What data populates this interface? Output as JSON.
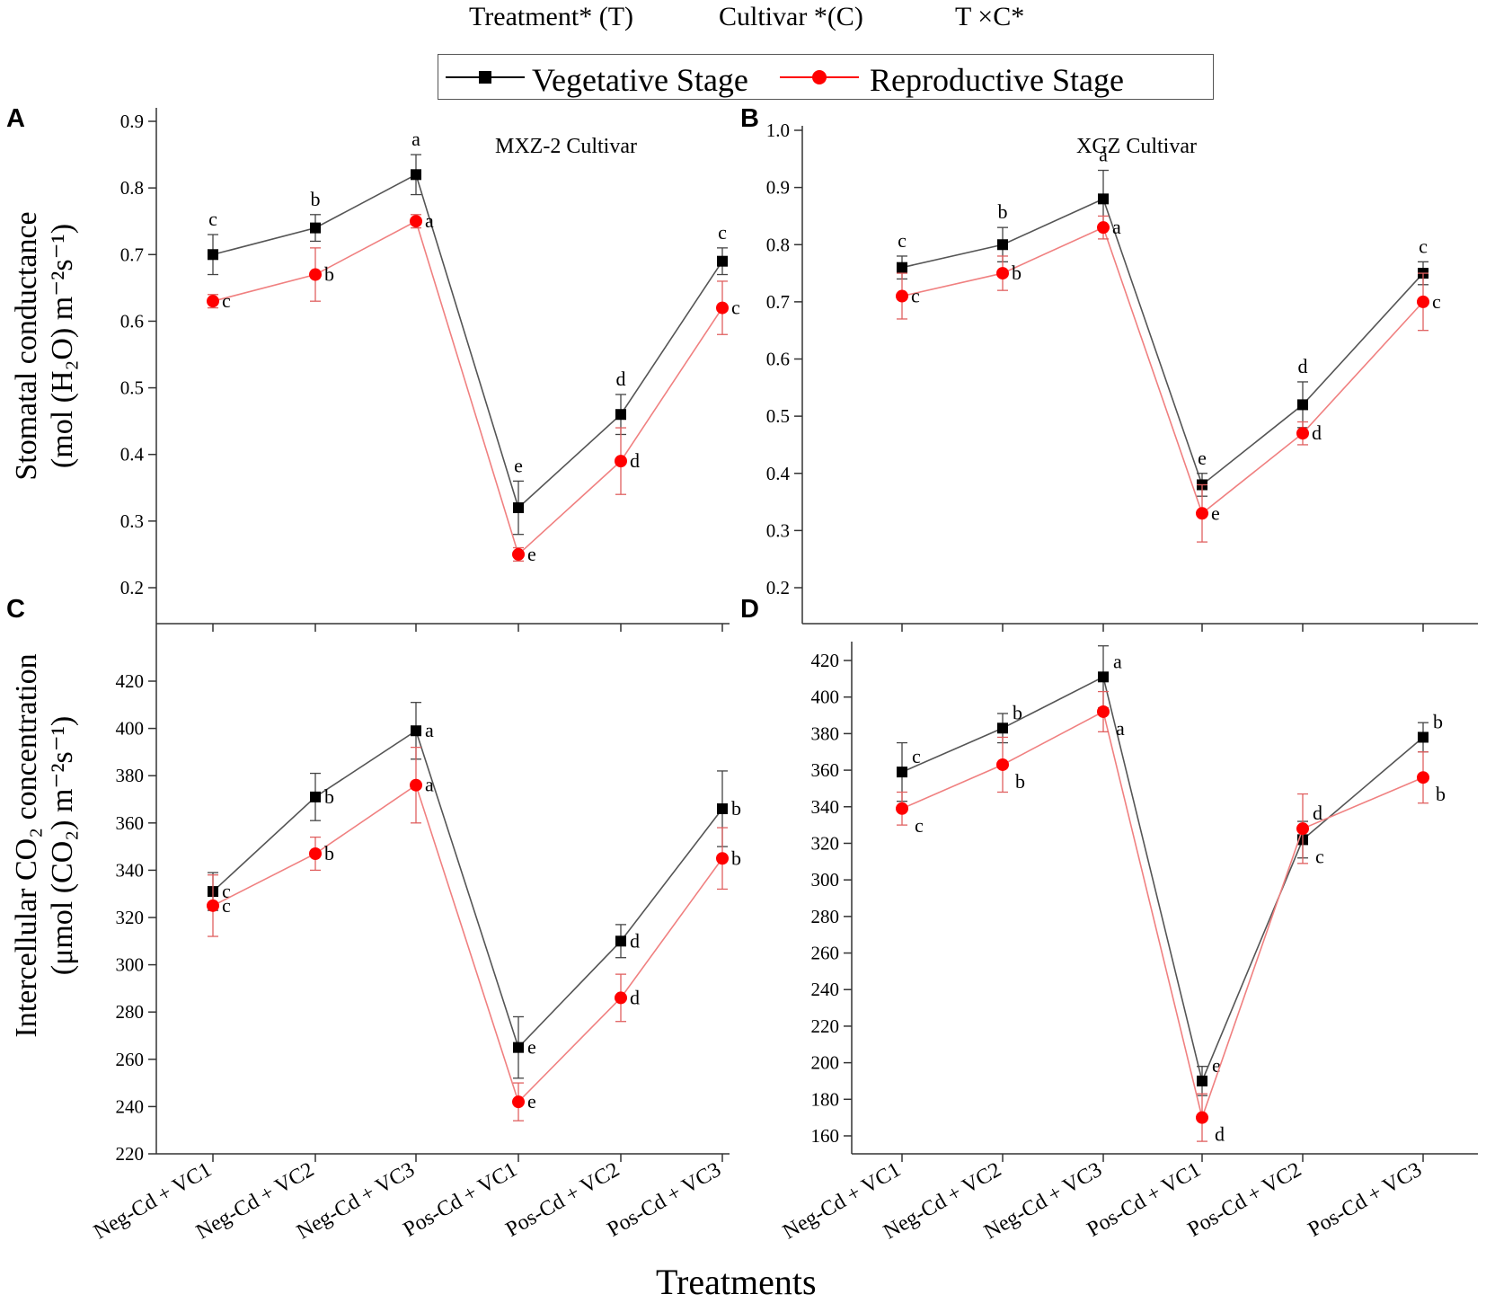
{
  "stats_header": {
    "treatment": "Treatment* (T)",
    "cultivar": "Cultivar *(C)",
    "interaction": "T ×C*"
  },
  "legend": {
    "vegetative": "Vegetative Stage",
    "reproductive": "Reproductive Stage"
  },
  "colors": {
    "vegetative": "#000000",
    "vegetative_line": "#555555",
    "reproductive": "#ff0000",
    "reproductive_line": "#f08080",
    "axis": "#333333"
  },
  "y_labels": {
    "top_line1": "Stomatal conductance",
    "top_line2": "(mol (H₂O) m⁻²s⁻¹)",
    "bottom_line1": "Intercellular CO₂ concentration",
    "bottom_line2": "(μmol (CO₂) m⁻²s⁻¹)"
  },
  "x_title": "Treatments",
  "chart_data": [
    {
      "panel": "A",
      "type": "line",
      "title": "MXZ-2 Cultivar",
      "categories": [
        "Neg-Cd + VC1",
        "Neg-Cd + VC2",
        "Neg-Cd + VC3",
        "Pos-Cd + VC1",
        "Pos-Cd + VC2",
        "Pos-Cd + VC3"
      ],
      "ylim": [
        0.15,
        0.9
      ],
      "yticks": [
        0.2,
        0.3,
        0.4,
        0.5,
        0.6,
        0.7,
        0.8,
        0.9
      ],
      "decimals": 1,
      "show_xlabels": false,
      "series": [
        {
          "name": "Vegetative Stage",
          "values": [
            0.7,
            0.74,
            0.82,
            0.32,
            0.46,
            0.69
          ],
          "errors": [
            0.03,
            0.02,
            0.03,
            0.04,
            0.03,
            0.02
          ],
          "letters": [
            "c",
            "b",
            "a",
            "e",
            "d",
            "c"
          ],
          "letter_pos": [
            "above",
            "above",
            "above",
            "above",
            "above",
            "above"
          ]
        },
        {
          "name": "Reproductive Stage",
          "values": [
            0.63,
            0.67,
            0.75,
            0.25,
            0.39,
            0.62
          ],
          "errors": [
            0.01,
            0.04,
            0.01,
            0.01,
            0.05,
            0.04
          ],
          "letters": [
            "c",
            "b",
            "a",
            "e",
            "d",
            "c"
          ],
          "letter_pos": [
            "right",
            "right",
            "right",
            "right",
            "right",
            "right"
          ]
        }
      ]
    },
    {
      "panel": "B",
      "type": "line",
      "title": "XGZ Cultivar",
      "categories": [
        "Neg-Cd + VC1",
        "Neg-Cd + VC2",
        "Neg-Cd + VC3",
        "Pos-Cd + VC1",
        "Pos-Cd + VC2",
        "Pos-Cd + VC3"
      ],
      "ylim": [
        0.15,
        1.0
      ],
      "yticks": [
        0.2,
        0.3,
        0.4,
        0.5,
        0.6,
        0.7,
        0.8,
        0.9,
        1.0
      ],
      "decimals": 1,
      "show_xlabels": false,
      "series": [
        {
          "name": "Vegetative Stage",
          "values": [
            0.76,
            0.8,
            0.88,
            0.38,
            0.52,
            0.75
          ],
          "errors": [
            0.02,
            0.03,
            0.05,
            0.02,
            0.04,
            0.02
          ],
          "letters": [
            "c",
            "b",
            "a",
            "e",
            "d",
            "c"
          ],
          "letter_pos": [
            "above",
            "above",
            "above",
            "above",
            "above",
            "above"
          ]
        },
        {
          "name": "Reproductive Stage",
          "values": [
            0.71,
            0.75,
            0.83,
            0.33,
            0.47,
            0.7
          ],
          "errors": [
            0.04,
            0.03,
            0.02,
            0.05,
            0.02,
            0.05
          ],
          "letters": [
            "c",
            "b",
            "a",
            "e",
            "d",
            "c"
          ],
          "letter_pos": [
            "right",
            "right",
            "right",
            "right",
            "right",
            "right"
          ]
        }
      ]
    },
    {
      "panel": "C",
      "type": "line",
      "title": "",
      "categories": [
        "Neg-Cd + VC1",
        "Neg-Cd + VC2",
        "Neg-Cd + VC3",
        "Pos-Cd + VC1",
        "Pos-Cd + VC2",
        "Pos-Cd + VC3"
      ],
      "ylim": [
        220,
        430
      ],
      "yticks": [
        220,
        240,
        260,
        280,
        300,
        320,
        340,
        360,
        380,
        400,
        420
      ],
      "decimals": 0,
      "show_xlabels": true,
      "series": [
        {
          "name": "Vegetative Stage",
          "values": [
            331,
            371,
            399,
            265,
            310,
            366
          ],
          "errors": [
            8,
            10,
            12,
            13,
            7,
            16
          ],
          "letters": [
            "c",
            "b",
            "a",
            "e",
            "d",
            "b"
          ],
          "letter_pos": [
            "right",
            "right",
            "right",
            "right",
            "right",
            "right"
          ]
        },
        {
          "name": "Reproductive Stage",
          "values": [
            325,
            347,
            376,
            242,
            286,
            345
          ],
          "errors": [
            13,
            7,
            16,
            8,
            10,
            13
          ],
          "letters": [
            "c",
            "b",
            "a",
            "e",
            "d",
            "b"
          ],
          "letter_pos": [
            "right",
            "right",
            "right",
            "right",
            "right",
            "right"
          ]
        }
      ]
    },
    {
      "panel": "D",
      "type": "line",
      "title": "",
      "categories": [
        "Neg-Cd + VC1",
        "Neg-Cd + VC2",
        "Neg-Cd + VC3",
        "Pos-Cd + VC1",
        "Pos-Cd + VC2",
        "Pos-Cd + VC3"
      ],
      "ylim": [
        150,
        430
      ],
      "yticks": [
        160,
        180,
        200,
        220,
        240,
        260,
        280,
        300,
        320,
        340,
        360,
        380,
        400,
        420
      ],
      "decimals": 0,
      "show_xlabels": true,
      "series": [
        {
          "name": "Vegetative Stage",
          "values": [
            359,
            383,
            411,
            190,
            322,
            378
          ],
          "errors": [
            16,
            8,
            17,
            8,
            10,
            8
          ],
          "letters": [
            "c",
            "b",
            "a",
            "e",
            "c",
            "b"
          ],
          "letter_pos": [
            "upright",
            "upright",
            "upright",
            "upright",
            "lowright",
            "upright"
          ]
        },
        {
          "name": "Reproductive Stage",
          "values": [
            339,
            363,
            392,
            170,
            328,
            356
          ],
          "errors": [
            9,
            15,
            11,
            13,
            19,
            14
          ],
          "letters": [
            "c",
            "b",
            "a",
            "d",
            "d",
            "b"
          ],
          "letter_pos": [
            "lowright",
            "lowright",
            "lowright",
            "lowright",
            "upright",
            "lowright"
          ]
        }
      ]
    }
  ]
}
